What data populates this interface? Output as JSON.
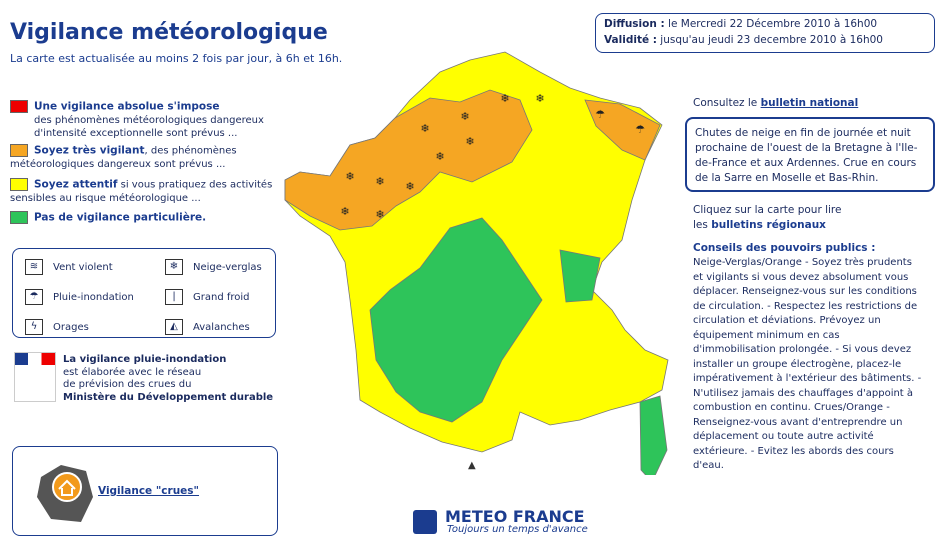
{
  "header": {
    "title": "Vigilance météorologique",
    "subtitle": "La carte est actualisée au moins 2 fois par jour, à 6h et 16h."
  },
  "levels": [
    {
      "bold": "Une vigilance absolue s'impose",
      "text": "des phénomènes météorologiques dangereux d'intensité exceptionnelle sont prévus ..."
    },
    {
      "bold": "Soyez très vigilant",
      "text": ", des phénomènes météorologiques dangereux sont prévus ..."
    },
    {
      "bold": "Soyez attentif",
      "text": "si vous pratiquez des activités sensibles au risque météorologique ..."
    },
    {
      "bold": "Pas de vigilance particulière.",
      "text": ""
    }
  ],
  "icons": [
    "Vent violent",
    "Neige-verglas",
    "Pluie-inondation",
    "Grand froid",
    "Orages",
    "Avalanches"
  ],
  "ministry": {
    "lines": [
      "La vigilance pluie-inondation",
      "est élaborée avec le réseau",
      "de prévision des crues du"
    ],
    "name": "Ministère du Développement durable"
  },
  "crues": "Vigilance \"crues\"",
  "diffusion": {
    "label": "Diffusion :",
    "text": "le Mercredi 22 Décembre 2010 à 16h00",
    "valid_label": "Validité :",
    "valid_text": "jusqu'au jeudi 23 decembre 2010 à 16h00"
  },
  "national": {
    "text": "Consultez le",
    "link": "bulletin national"
  },
  "summary": "Chutes de neige en fin de journée et nuit prochaine de l'ouest de la Bretagne à l'Ile-de-France et aux Ardennes. Crue en cours de la Sarre en Moselle et Bas-Rhin.",
  "regional": {
    "line1": "Cliquez sur la carte pour lire",
    "prefix": "les",
    "link": "bulletins régionaux"
  },
  "advice": {
    "title": "Conseils des pouvoirs publics :",
    "text": "Neige-Verglas/Orange - Soyez très prudents et vigilants si vous devez absolument vous déplacer. Renseignez-vous sur les conditions de circulation. - Respectez les restrictions de circulation et déviations. Prévoyez un équipement minimum en cas d'immobilisation prolongée. - Si vous devez installer un groupe électrogène, placez-le impérativement à l'extérieur des bâtiments. - N'utilisez jamais des chauffages d'appoint à combustion en continu. Crues/Orange - Renseignez-vous avant d'entreprendre un déplacement ou toute autre activité extérieure. - Evitez les abords des cours d'eau."
  },
  "logo": {
    "name": "METEO FRANCE",
    "slogan": "Toujours un temps d'avance"
  }
}
